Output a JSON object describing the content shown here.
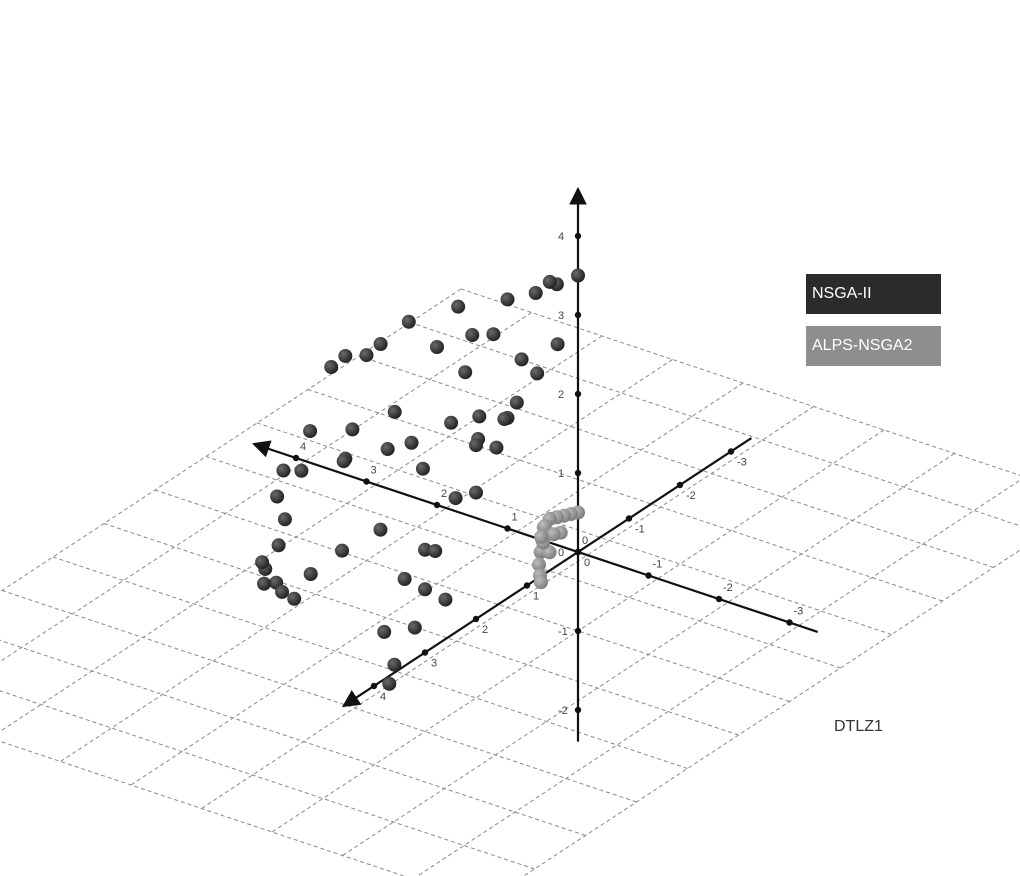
{
  "chart_data": {
    "type": "scatter3d",
    "title": "",
    "annotation": "DTLZ1",
    "legend_placement": "right",
    "grid": true,
    "axes": {
      "x": {
        "range": [
          -3,
          4
        ],
        "ticks": [
          -3,
          -2,
          -1,
          0,
          1,
          2,
          3,
          4
        ]
      },
      "y": {
        "range": [
          -3,
          4
        ],
        "ticks": [
          -3,
          -2,
          -1,
          0,
          1,
          2,
          3,
          4
        ]
      },
      "z": {
        "range": [
          -2,
          4
        ],
        "ticks": [
          -2,
          -1,
          0,
          1,
          2,
          3,
          4
        ]
      }
    },
    "series": [
      {
        "name": "NSGA-II",
        "color": "#303030",
        "points": [
          [
            0,
            0,
            3.5
          ],
          [
            0.3,
            0,
            3.3
          ],
          [
            0.4,
            0,
            3.3
          ],
          [
            0.6,
            0,
            3.1
          ],
          [
            1.0,
            0,
            2.9
          ],
          [
            1.7,
            0,
            2.6
          ],
          [
            2.4,
            0,
            2.2
          ],
          [
            1.5,
            0,
            2.3
          ],
          [
            1.2,
            0,
            2.4
          ],
          [
            2.0,
            0,
            2.0
          ],
          [
            2.8,
            0,
            1.8
          ],
          [
            3.0,
            0,
            1.6
          ],
          [
            3.3,
            0,
            1.5
          ],
          [
            3.5,
            0,
            1.3
          ],
          [
            1.8,
            0,
            1.1
          ],
          [
            1.4,
            0,
            1.3
          ],
          [
            2.6,
            0,
            1.0
          ],
          [
            3.8,
            0,
            0.4
          ],
          [
            3.2,
            0,
            0.6
          ],
          [
            2.2,
            0,
            0.4
          ],
          [
            3.3,
            0,
            0.2
          ],
          [
            2.7,
            0,
            0.5
          ],
          [
            1.0,
            0,
            1.4
          ],
          [
            1.6,
            0,
            1.8
          ],
          [
            0.8,
            0,
            2.2
          ],
          [
            0.9,
            0.2,
            1.5
          ],
          [
            1.2,
            0.3,
            1.2
          ],
          [
            2.0,
            0.5,
            1.0
          ],
          [
            2.6,
            1.0,
            0.8
          ],
          [
            3.2,
            1.0,
            0.5
          ],
          [
            3.4,
            1.2,
            0.2
          ],
          [
            3.6,
            0.8,
            0.3
          ],
          [
            3.0,
            1.6,
            0.2
          ],
          [
            1.5,
            1.8,
            0.6
          ],
          [
            1.9,
            2.0,
            0.3
          ],
          [
            2.2,
            2.2,
            0.0
          ],
          [
            2.8,
            2.0,
            0.1
          ],
          [
            2.4,
            2.6,
            0.0
          ],
          [
            2.0,
            2.8,
            0.0
          ],
          [
            2.1,
            2.9,
            0.1
          ],
          [
            2.7,
            2.4,
            0.0
          ],
          [
            2.5,
            2.7,
            0.0
          ],
          [
            2.6,
            2.6,
            0.2
          ],
          [
            0,
            2.4,
            1.7
          ],
          [
            0,
            3.0,
            1.3
          ],
          [
            0,
            3.4,
            1.1
          ],
          [
            0,
            3.8,
            0.6
          ],
          [
            0,
            2.8,
            1.2
          ],
          [
            0,
            1.6,
            2.0
          ],
          [
            0,
            2.0,
            1.6
          ],
          [
            0,
            0.4,
            2.8
          ],
          [
            0,
            1.2,
            2.4
          ],
          [
            0,
            0.8,
            2.6
          ],
          [
            0,
            2.0,
            2.2
          ],
          [
            0,
            3.0,
            0.8
          ],
          [
            0,
            3.2,
            0.4
          ],
          [
            0,
            2.6,
            0.5
          ],
          [
            0,
            3.6,
            0.1
          ],
          [
            0,
            3.7,
            -0.1
          ]
        ]
      },
      {
        "name": "ALPS-NSGA2",
        "color": "#8a8a8a",
        "points": [
          [
            0,
            0,
            0.5
          ],
          [
            0.1,
            0,
            0.45
          ],
          [
            0.2,
            0,
            0.4
          ],
          [
            0.3,
            0,
            0.35
          ],
          [
            0.4,
            0,
            0.3
          ],
          [
            0.45,
            0.05,
            0.2
          ],
          [
            0.4,
            0.15,
            0.1
          ],
          [
            0.35,
            0.25,
            0.0
          ],
          [
            0.3,
            0.35,
            -0.1
          ],
          [
            0.25,
            0.4,
            -0.2
          ],
          [
            0.2,
            0.45,
            -0.25
          ],
          [
            0.4,
            0.1,
            0.25
          ],
          [
            0.3,
            0.3,
            0.05
          ],
          [
            0.15,
            0.35,
            0.1
          ],
          [
            0.1,
            0.2,
            0.3
          ],
          [
            0.2,
            0.2,
            0.25
          ],
          [
            0.35,
            0.2,
            0.1
          ],
          [
            0.45,
            0.1,
            0.1
          ]
        ]
      }
    ]
  },
  "legend": [
    {
      "label": "NSGA-II",
      "color": "#2b2b2b"
    },
    {
      "label": "ALPS-NSGA2",
      "color": "#8e8e8e"
    }
  ]
}
